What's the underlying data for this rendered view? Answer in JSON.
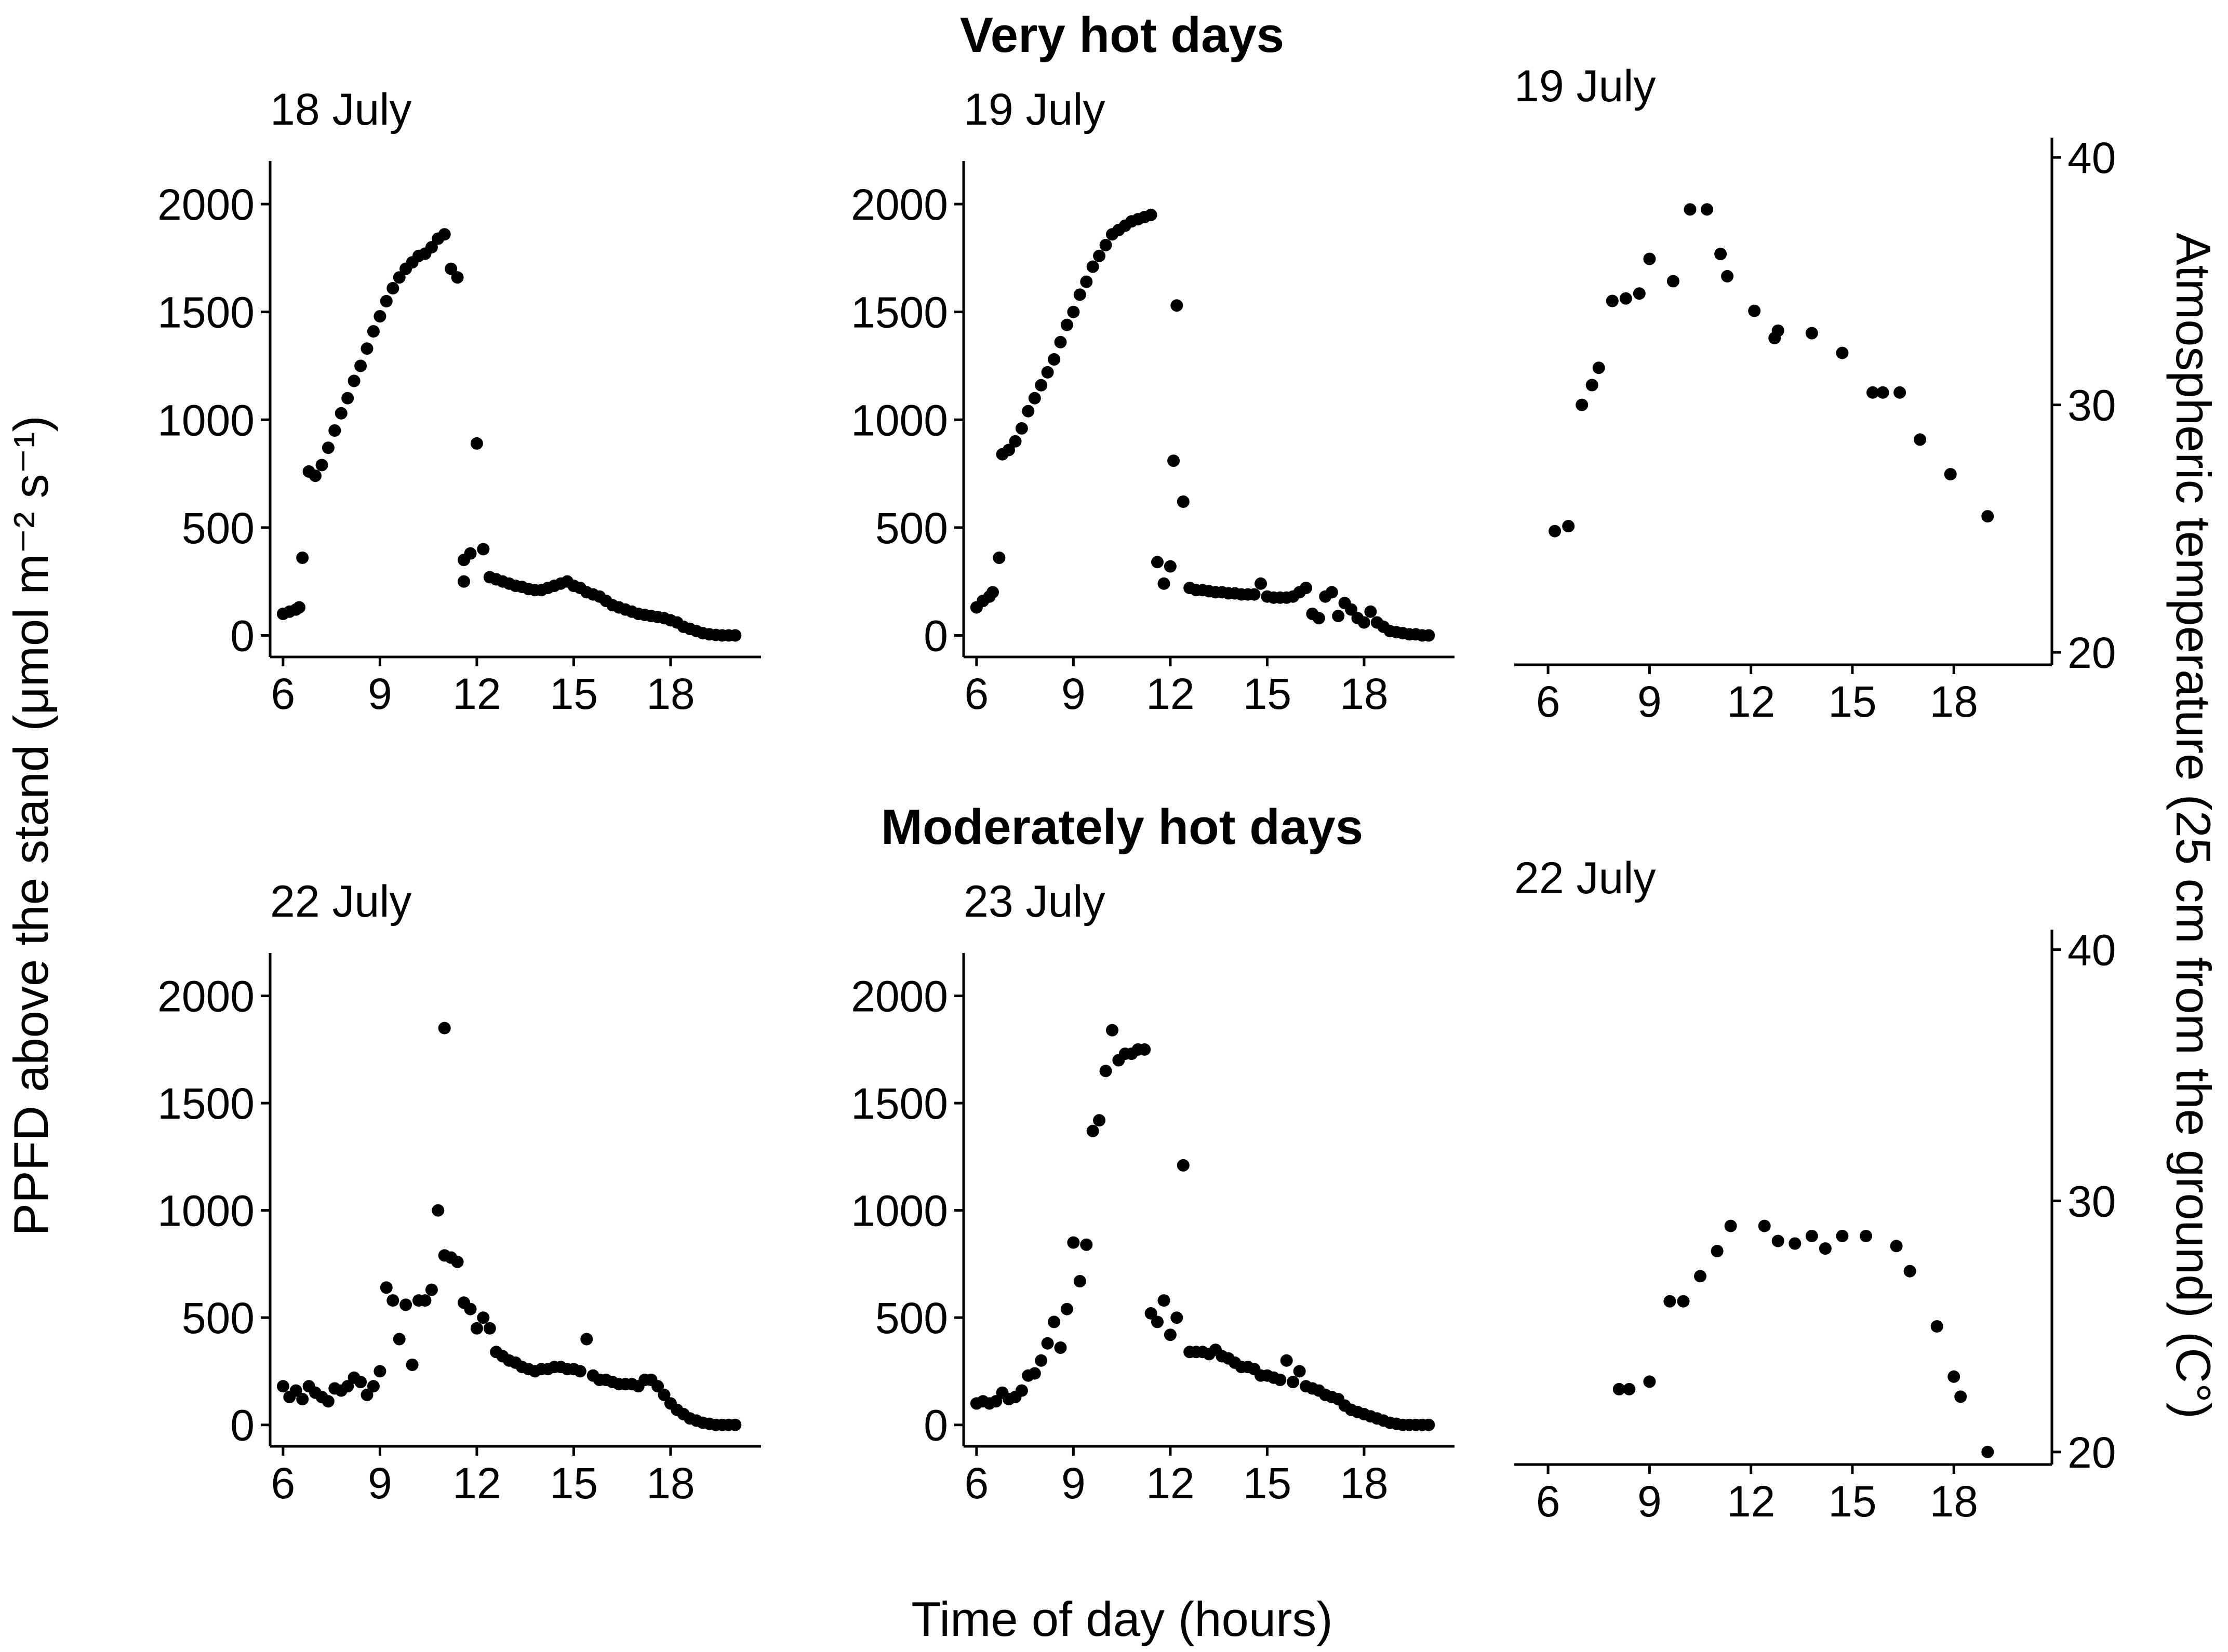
{
  "figure": {
    "section_titles": [
      "Very hot days",
      "Moderately hot days"
    ],
    "xlabel": "Time of day (hours)",
    "ylabel_left": "PPFD above the stand (μmol m⁻² s⁻¹)",
    "ylabel_right": "Atmospheric temperature (25 cm from the ground) (C°)"
  },
  "chart_data": [
    {
      "type": "scatter",
      "title": "18 July",
      "group": "Very hot days",
      "xlabel": "Time of day (hours)",
      "ylabel": "PPFD above the stand",
      "xlim": [
        5.6,
        20.8
      ],
      "ylim": [
        -100,
        2200
      ],
      "xticks": [
        6,
        9,
        12,
        15,
        18
      ],
      "yticks": [
        0,
        500,
        1000,
        1500,
        2000
      ],
      "x": [
        6.0,
        6.2,
        6.4,
        6.5,
        6.6,
        6.8,
        7.0,
        7.2,
        7.4,
        7.6,
        7.8,
        8.0,
        8.2,
        8.4,
        8.6,
        8.8,
        9.0,
        9.2,
        9.4,
        9.6,
        9.8,
        10.0,
        10.2,
        10.4,
        10.6,
        10.8,
        11.0,
        11.2,
        11.4,
        11.6,
        11.6,
        11.8,
        12.0,
        12.2,
        12.4,
        12.6,
        12.8,
        13.0,
        13.2,
        13.4,
        13.6,
        13.8,
        14.0,
        14.2,
        14.4,
        14.6,
        14.8,
        15.0,
        15.2,
        15.4,
        15.6,
        15.8,
        16.0,
        16.2,
        16.4,
        16.6,
        16.8,
        17.0,
        17.2,
        17.4,
        17.6,
        17.8,
        18.0,
        18.2,
        18.4,
        18.6,
        18.8,
        19.0,
        19.2,
        19.4,
        19.6,
        19.8,
        20.0
      ],
      "y": [
        100,
        110,
        120,
        130,
        360,
        760,
        740,
        790,
        870,
        950,
        1030,
        1100,
        1180,
        1250,
        1330,
        1410,
        1480,
        1550,
        1610,
        1660,
        1700,
        1730,
        1760,
        1770,
        1800,
        1840,
        1860,
        1700,
        1660,
        250,
        350,
        380,
        890,
        400,
        270,
        260,
        250,
        240,
        230,
        225,
        215,
        210,
        210,
        220,
        230,
        240,
        250,
        230,
        220,
        200,
        190,
        180,
        160,
        140,
        130,
        120,
        110,
        100,
        95,
        90,
        85,
        80,
        70,
        60,
        40,
        30,
        20,
        10,
        5,
        2,
        0,
        0,
        0
      ],
      "markers": [
        6.0,
        6.2,
        6.4,
        6.5,
        6.6,
        6.8,
        7.0,
        7.2,
        7.4,
        7.6,
        7.8,
        8.0,
        8.2,
        8.4,
        8.6,
        8.8,
        9.0,
        9.2,
        9.4,
        9.6,
        9.8,
        10.0,
        10.2,
        10.4,
        10.6,
        10.8,
        11.0,
        11.2,
        11.4,
        11.6,
        11.6,
        11.8,
        12.0,
        12.2,
        12.4,
        12.6,
        12.8,
        13.0,
        13.2,
        13.4,
        13.6,
        13.8,
        14.0,
        14.2,
        14.4,
        14.6,
        14.8,
        15.0,
        15.2,
        15.4,
        15.6,
        15.8,
        16.0,
        16.2,
        16.4,
        16.6,
        16.8,
        17.0,
        17.2,
        17.4,
        17.6,
        17.8,
        18.0,
        18.2,
        18.4,
        18.6,
        18.8,
        19.0,
        19.2,
        19.4,
        19.6,
        19.8,
        20.0
      ]
    },
    {
      "type": "scatter",
      "title": "19 July",
      "group": "Very hot days",
      "xlabel": "Time of day (hours)",
      "ylabel": "PPFD above the stand",
      "xlim": [
        5.6,
        20.8
      ],
      "ylim": [
        -100,
        2200
      ],
      "xticks": [
        6,
        9,
        12,
        15,
        18
      ],
      "yticks": [
        0,
        500,
        1000,
        1500,
        2000
      ],
      "x": [
        6.0,
        6.2,
        6.4,
        6.5,
        6.7,
        6.8,
        7.0,
        7.2,
        7.4,
        7.6,
        7.8,
        8.0,
        8.2,
        8.4,
        8.6,
        8.8,
        9.0,
        9.2,
        9.4,
        9.6,
        9.8,
        10.0,
        10.2,
        10.4,
        10.6,
        10.8,
        11.0,
        11.2,
        11.4,
        11.6,
        11.8,
        12.0,
        12.1,
        12.2,
        12.4,
        12.6,
        12.8,
        13.0,
        13.2,
        13.4,
        13.6,
        13.8,
        14.0,
        14.2,
        14.4,
        14.6,
        14.8,
        15.0,
        15.2,
        15.4,
        15.6,
        15.8,
        16.0,
        16.2,
        16.4,
        16.6,
        16.8,
        17.0,
        17.2,
        17.4,
        17.6,
        17.8,
        18.0,
        18.2,
        18.4,
        18.6,
        18.8,
        19.0,
        19.2,
        19.4,
        19.6,
        19.8,
        20.0
      ],
      "y": [
        130,
        160,
        180,
        200,
        360,
        840,
        860,
        900,
        960,
        1040,
        1100,
        1160,
        1220,
        1280,
        1360,
        1440,
        1500,
        1580,
        1640,
        1710,
        1760,
        1810,
        1860,
        1880,
        1900,
        1920,
        1930,
        1940,
        1950,
        340,
        240,
        320,
        810,
        1530,
        620,
        220,
        210,
        210,
        205,
        200,
        200,
        195,
        195,
        190,
        190,
        190,
        240,
        180,
        175,
        175,
        175,
        180,
        200,
        220,
        100,
        80,
        180,
        200,
        90,
        150,
        120,
        80,
        60,
        110,
        60,
        40,
        20,
        15,
        10,
        5,
        5,
        0,
        0
      ],
      "markers": [
        6.0,
        6.2,
        6.4,
        6.5,
        6.7,
        6.8,
        7.0,
        7.2,
        7.4,
        7.6,
        7.8,
        8.0,
        8.2,
        8.4,
        8.6,
        8.8,
        9.0,
        9.2,
        9.4,
        9.6,
        9.8,
        10.0,
        10.2,
        10.4,
        10.6,
        10.8,
        11.0,
        11.2,
        11.4,
        11.6,
        11.8,
        12.0,
        12.1,
        12.2,
        12.4,
        12.6,
        12.8,
        13.0,
        13.2,
        13.4,
        13.6,
        13.8,
        14.0,
        14.2,
        14.4,
        14.6,
        14.8,
        15.0,
        15.2,
        15.4,
        15.6,
        15.8,
        16.0,
        16.2,
        16.4,
        16.6,
        16.8,
        17.0,
        17.2,
        17.4,
        17.6,
        17.8,
        18.0,
        18.2,
        18.4,
        18.6,
        18.8,
        19.0,
        19.2,
        19.4,
        19.6,
        19.8,
        20.0
      ]
    },
    {
      "type": "scatter",
      "title": "19 July",
      "group": "Very hot days",
      "xlabel": "Time of day (hours)",
      "ylabel": "Atmospheric temperature",
      "xlim": [
        5.0,
        20.9
      ],
      "ylim": [
        19.5,
        40.8
      ],
      "xticks": [
        6,
        9,
        12,
        15,
        18
      ],
      "yticks": [
        20,
        30,
        40
      ],
      "x": [
        6.2,
        6.6,
        7.0,
        7.3,
        7.5,
        7.9,
        8.3,
        8.7,
        9.0,
        9.7,
        10.2,
        10.7,
        11.1,
        11.3,
        12.1,
        12.7,
        12.8,
        13.8,
        14.7,
        15.6,
        15.9,
        16.4,
        17.0,
        17.9,
        19.0
      ],
      "y": [
        24.9,
        25.1,
        30.0,
        30.8,
        31.5,
        34.2,
        34.3,
        34.5,
        35.9,
        35.0,
        37.9,
        37.9,
        36.1,
        35.2,
        33.8,
        32.7,
        33.0,
        32.9,
        32.1,
        30.5,
        30.5,
        30.5,
        28.6,
        27.2,
        25.5
      ],
      "markers": [
        6.2,
        6.6,
        7.0,
        7.3,
        7.5,
        7.9,
        8.3,
        8.7,
        9.0,
        9.7,
        10.2,
        10.7,
        11.1,
        11.3,
        12.1,
        12.7,
        12.8,
        13.8,
        14.7,
        15.6,
        15.9,
        16.4,
        17.0,
        17.9,
        19.0
      ]
    },
    {
      "type": "scatter",
      "title": "22 July",
      "group": "Moderately hot days",
      "xlabel": "Time of day (hours)",
      "ylabel": "PPFD above the stand",
      "xlim": [
        5.6,
        20.8
      ],
      "ylim": [
        -100,
        2200
      ],
      "xticks": [
        6,
        9,
        12,
        15,
        18
      ],
      "yticks": [
        0,
        500,
        1000,
        1500,
        2000
      ],
      "x": [
        6.0,
        6.2,
        6.4,
        6.6,
        6.8,
        7.0,
        7.2,
        7.4,
        7.6,
        7.8,
        8.0,
        8.2,
        8.4,
        8.6,
        8.8,
        9.0,
        9.2,
        9.4,
        9.6,
        9.8,
        10.0,
        10.2,
        10.4,
        10.6,
        10.8,
        11.0,
        11.2,
        11.4,
        11.6,
        11.8,
        12.0,
        12.2,
        12.4,
        12.6,
        12.8,
        13.0,
        13.2,
        13.4,
        13.6,
        13.8,
        14.0,
        14.2,
        14.4,
        14.6,
        14.8,
        15.0,
        15.2,
        15.4,
        15.6,
        15.8,
        16.0,
        16.2,
        16.4,
        16.6,
        16.8,
        17.0,
        17.2,
        17.4,
        17.6,
        17.8,
        18.0,
        18.2,
        18.4,
        18.6,
        18.8,
        19.0,
        19.2,
        19.4,
        19.6,
        19.8,
        20.0
      ],
      "y": [
        180,
        130,
        160,
        120,
        180,
        150,
        130,
        110,
        170,
        160,
        180,
        220,
        200,
        140,
        180,
        250,
        640,
        580,
        400,
        560,
        280,
        580,
        580,
        630,
        1000,
        790,
        780,
        760,
        570,
        540,
        450,
        500,
        450,
        340,
        320,
        300,
        290,
        270,
        260,
        250,
        260,
        260,
        270,
        270,
        260,
        260,
        250,
        400,
        230,
        210,
        210,
        200,
        190,
        190,
        190,
        180,
        210,
        210,
        180,
        140,
        100,
        70,
        50,
        30,
        20,
        10,
        5,
        0,
        0,
        0,
        0
      ],
      "markers": [
        6.0,
        6.2,
        6.4,
        6.6,
        6.8,
        7.0,
        7.2,
        7.4,
        7.6,
        7.8,
        8.0,
        8.2,
        8.4,
        8.6,
        8.8,
        9.0,
        9.2,
        9.4,
        9.6,
        9.8,
        10.0,
        10.2,
        10.4,
        10.6,
        10.8,
        11.0,
        11.2,
        11.4,
        11.6,
        11.8,
        12.0,
        12.2,
        12.4,
        12.6,
        12.8,
        13.0,
        13.2,
        13.4,
        13.6,
        13.8,
        14.0,
        14.2,
        14.4,
        14.6,
        14.8,
        15.0,
        15.2,
        15.4,
        15.6,
        15.8,
        16.0,
        16.2,
        16.4,
        16.6,
        16.8,
        17.0,
        17.2,
        17.4,
        17.6,
        17.8,
        18.0,
        18.2,
        18.4,
        18.6,
        18.8,
        19.0,
        19.2,
        19.4,
        19.6,
        19.8,
        20.0
      ],
      "extra_point": [
        11.0,
        1850
      ]
    },
    {
      "type": "scatter",
      "title": "23 July",
      "group": "Moderately hot days",
      "xlabel": "Time of day (hours)",
      "ylabel": "PPFD above the stand",
      "xlim": [
        5.6,
        20.8
      ],
      "ylim": [
        -100,
        2200
      ],
      "xticks": [
        6,
        9,
        12,
        15,
        18
      ],
      "yticks": [
        0,
        500,
        1000,
        1500,
        2000
      ],
      "x": [
        6.0,
        6.2,
        6.4,
        6.6,
        6.8,
        7.0,
        7.2,
        7.4,
        7.6,
        7.8,
        8.0,
        8.2,
        8.4,
        8.6,
        8.8,
        9.0,
        9.2,
        9.4,
        9.6,
        9.8,
        10.0,
        10.2,
        10.4,
        10.6,
        10.8,
        11.0,
        11.2,
        11.4,
        11.6,
        11.8,
        12.0,
        12.2,
        12.4,
        12.6,
        12.8,
        13.0,
        13.2,
        13.4,
        13.6,
        13.8,
        14.0,
        14.2,
        14.4,
        14.6,
        14.8,
        15.0,
        15.2,
        15.4,
        15.6,
        15.8,
        16.0,
        16.2,
        16.4,
        16.6,
        16.8,
        17.0,
        17.2,
        17.4,
        17.6,
        17.8,
        18.0,
        18.2,
        18.4,
        18.6,
        18.8,
        19.0,
        19.2,
        19.4,
        19.6,
        19.8,
        20.0
      ],
      "y": [
        100,
        110,
        100,
        110,
        150,
        120,
        130,
        160,
        230,
        240,
        300,
        380,
        480,
        360,
        540,
        850,
        670,
        840,
        1370,
        1420,
        1650,
        1840,
        1700,
        1730,
        1730,
        1750,
        1750,
        520,
        480,
        580,
        420,
        500,
        1210,
        340,
        340,
        340,
        330,
        350,
        320,
        310,
        290,
        270,
        270,
        260,
        230,
        230,
        220,
        210,
        300,
        200,
        250,
        180,
        170,
        160,
        140,
        130,
        120,
        90,
        70,
        60,
        50,
        40,
        30,
        20,
        10,
        5,
        0,
        0,
        0,
        0,
        0
      ],
      "markers": [
        6.0,
        6.2,
        6.4,
        6.6,
        6.8,
        7.0,
        7.2,
        7.4,
        7.6,
        7.8,
        8.0,
        8.2,
        8.4,
        8.6,
        8.8,
        9.0,
        9.2,
        9.4,
        9.6,
        9.8,
        10.0,
        10.2,
        10.4,
        10.6,
        10.8,
        11.0,
        11.2,
        11.4,
        11.6,
        11.8,
        12.0,
        12.2,
        12.4,
        12.6,
        12.8,
        13.0,
        13.2,
        13.4,
        13.6,
        13.8,
        14.0,
        14.2,
        14.4,
        14.6,
        14.8,
        15.0,
        15.2,
        15.4,
        15.6,
        15.8,
        16.0,
        16.2,
        16.4,
        16.6,
        16.8,
        17.0,
        17.2,
        17.4,
        17.6,
        17.8,
        18.0,
        18.2,
        18.4,
        18.6,
        18.8,
        19.0,
        19.2,
        19.4,
        19.6,
        19.8,
        20.0
      ]
    },
    {
      "type": "scatter",
      "title": "22 July",
      "group": "Moderately hot days",
      "xlabel": "Time of day (hours)",
      "ylabel": "Atmospheric temperature",
      "xlim": [
        5.0,
        20.9
      ],
      "ylim": [
        19.5,
        40.8
      ],
      "xticks": [
        6,
        9,
        12,
        15,
        18
      ],
      "yticks": [
        20,
        30,
        40
      ],
      "x": [
        8.1,
        8.4,
        9.0,
        9.6,
        10.0,
        10.5,
        11.0,
        11.4,
        12.4,
        12.8,
        13.3,
        13.8,
        14.2,
        14.7,
        15.4,
        16.3,
        16.7,
        17.5,
        18.0,
        18.2,
        19.0
      ],
      "y": [
        22.5,
        22.5,
        22.8,
        26.0,
        26.0,
        27.0,
        28.0,
        29.0,
        29.0,
        28.4,
        28.3,
        28.6,
        28.1,
        28.6,
        28.6,
        28.2,
        27.2,
        25.0,
        23.0,
        22.2,
        20.0
      ],
      "markers": [
        8.1,
        8.4,
        9.0,
        9.6,
        10.0,
        10.5,
        11.0,
        11.4,
        12.4,
        12.8,
        13.3,
        13.8,
        14.2,
        14.7,
        15.4,
        16.3,
        16.7,
        17.5,
        18.0,
        18.2,
        19.0
      ]
    }
  ]
}
